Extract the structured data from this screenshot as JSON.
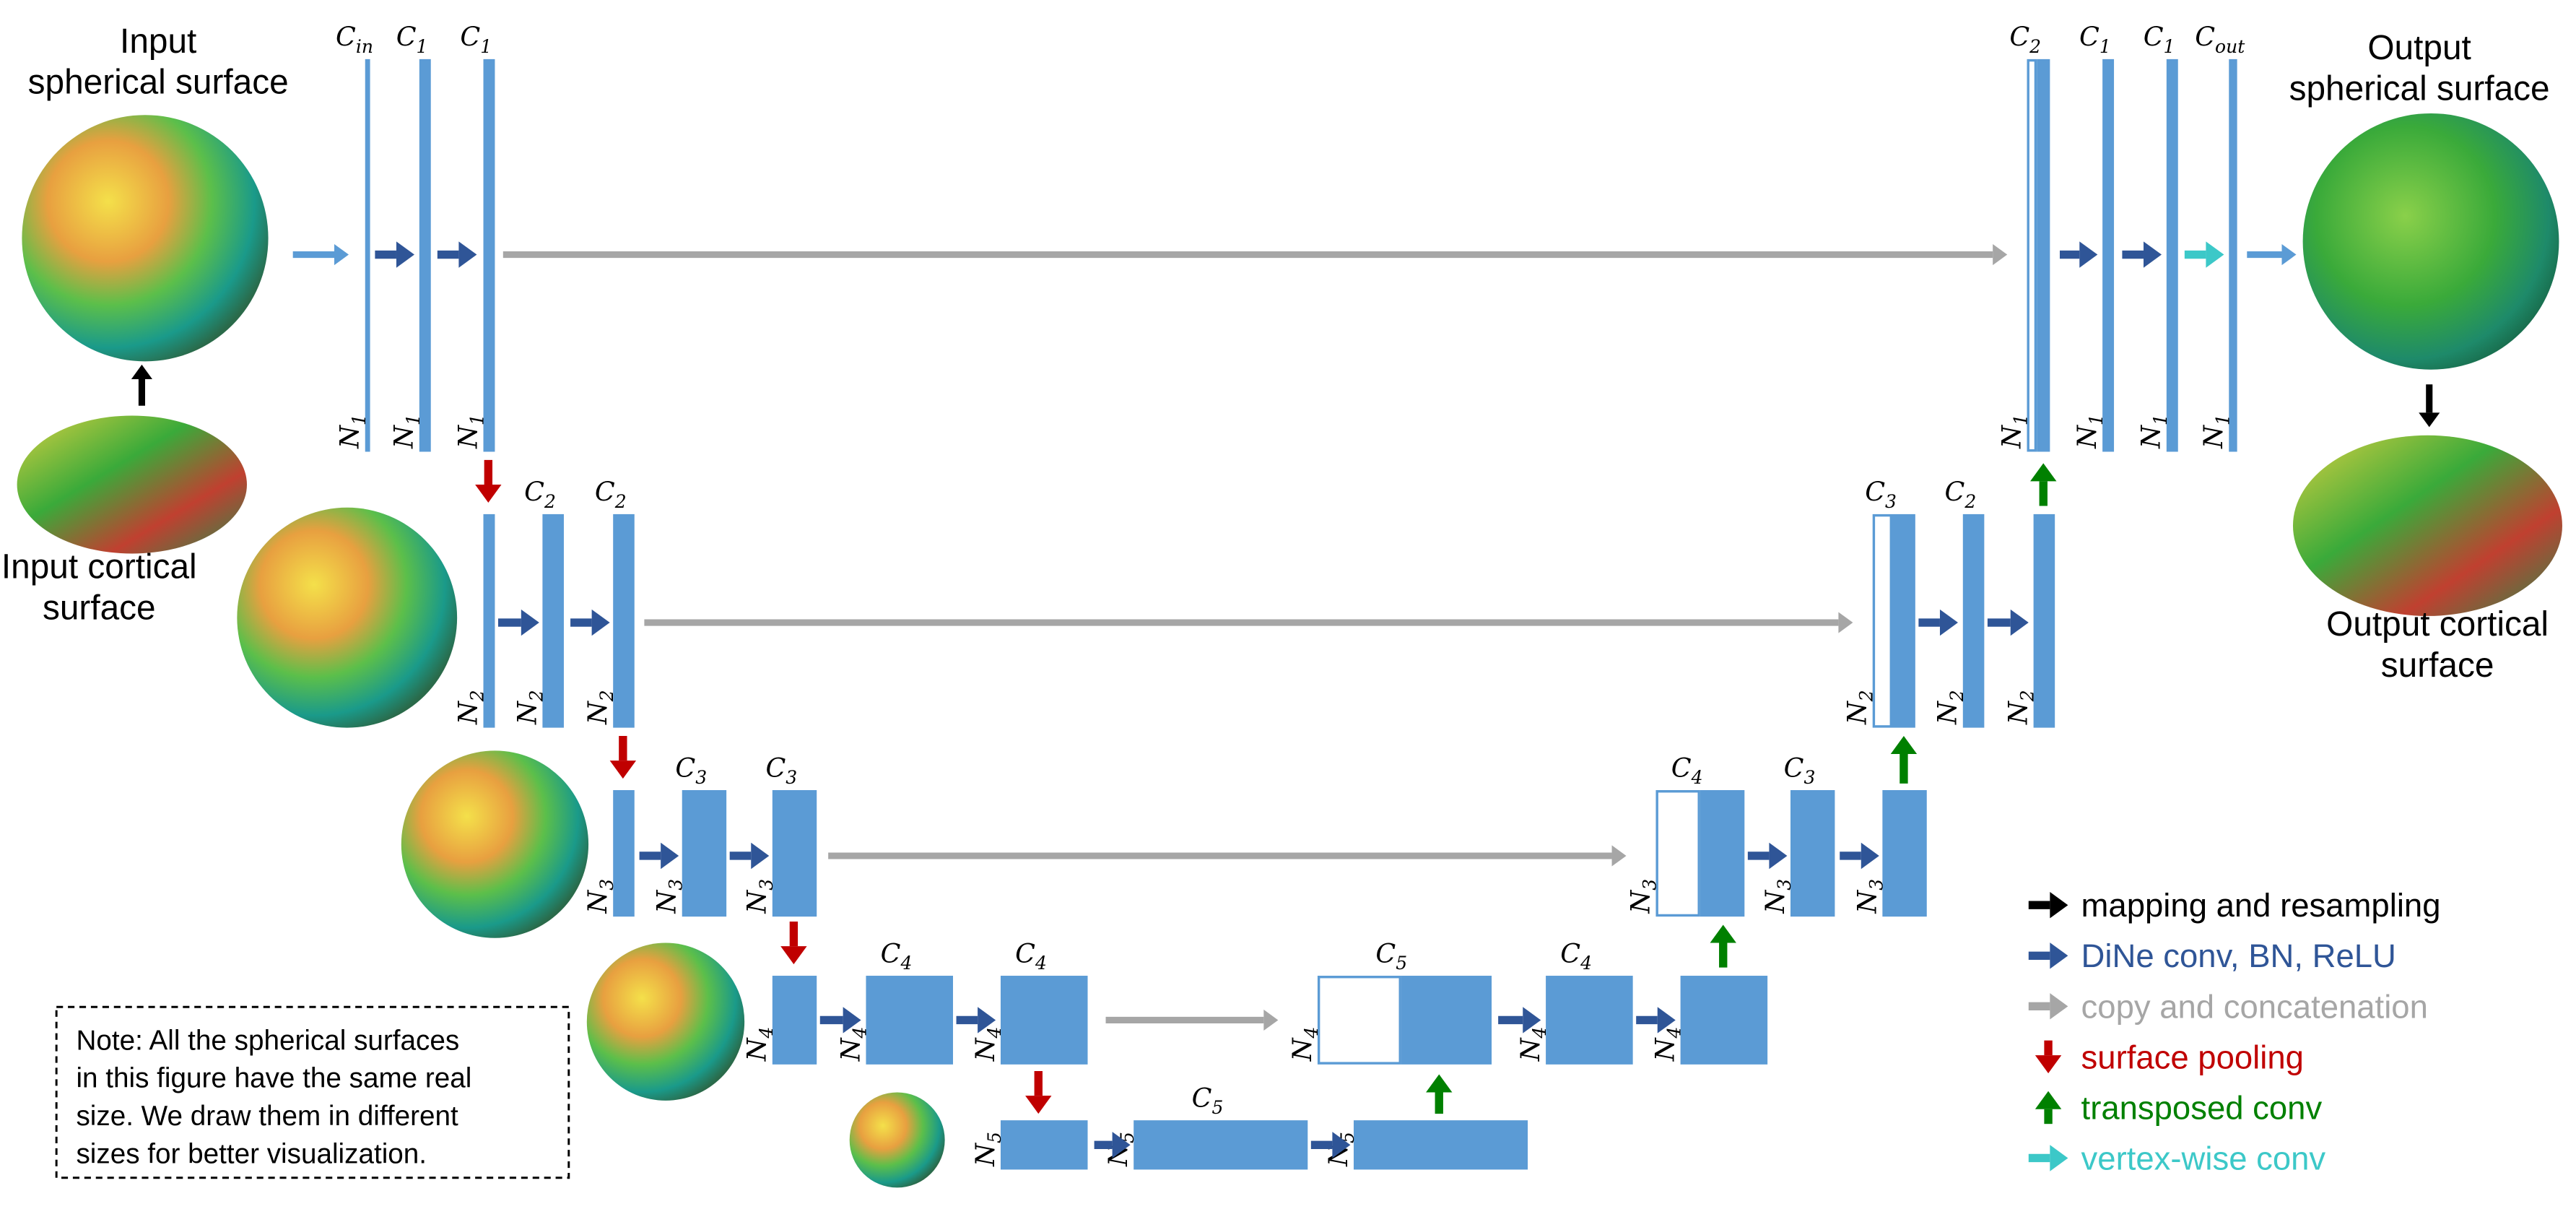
{
  "blocks": [
    {
      "channels": {
        "symbol": "C",
        "sub": "in"
      },
      "vertices": {
        "symbol": "N",
        "sub": "1"
      }
    },
    {
      "channels": {
        "symbol": "C",
        "sub": "1"
      },
      "vertices": {
        "symbol": "N",
        "sub": "1"
      }
    },
    {
      "channels": {
        "symbol": "C",
        "sub": "1"
      },
      "vertices": {
        "symbol": "N",
        "sub": "1"
      }
    },
    {
      "channels": {
        "symbol": "C",
        "sub": "2"
      },
      "vertices": {
        "symbol": "N",
        "sub": "1"
      }
    },
    {
      "channels": {
        "symbol": "C",
        "sub": "1"
      },
      "vertices": {
        "symbol": "N",
        "sub": "1"
      }
    },
    {
      "channels": {
        "symbol": "C",
        "sub": "1"
      },
      "vertices": {
        "symbol": "N",
        "sub": "1"
      }
    },
    {
      "channels": {
        "symbol": "C",
        "sub": "out"
      },
      "vertices": {
        "symbol": "N",
        "sub": "1"
      }
    },
    {
      "vertices": {
        "symbol": "N",
        "sub": "2"
      }
    },
    {
      "channels": {
        "symbol": "C",
        "sub": "2"
      },
      "vertices": {
        "symbol": "N",
        "sub": "2"
      }
    },
    {
      "channels": {
        "symbol": "C",
        "sub": "2"
      },
      "vertices": {
        "symbol": "N",
        "sub": "2"
      }
    },
    {
      "channels": {
        "symbol": "C",
        "sub": "3"
      },
      "vertices": {
        "symbol": "N",
        "sub": "2"
      }
    },
    {
      "channels": {
        "symbol": "C",
        "sub": "2"
      },
      "vertices": {
        "symbol": "N",
        "sub": "2"
      }
    },
    {
      "vertices": {
        "symbol": "N",
        "sub": "2"
      }
    },
    {
      "vertices": {
        "symbol": "N",
        "sub": "3"
      }
    },
    {
      "channels": {
        "symbol": "C",
        "sub": "3"
      },
      "vertices": {
        "symbol": "N",
        "sub": "3"
      }
    },
    {
      "channels": {
        "symbol": "C",
        "sub": "3"
      },
      "vertices": {
        "symbol": "N",
        "sub": "3"
      }
    },
    {
      "channels": {
        "symbol": "C",
        "sub": "4"
      },
      "vertices": {
        "symbol": "N",
        "sub": "3"
      }
    },
    {
      "channels": {
        "symbol": "C",
        "sub": "3"
      },
      "vertices": {
        "symbol": "N",
        "sub": "3"
      }
    },
    {
      "vertices": {
        "symbol": "N",
        "sub": "3"
      }
    },
    {
      "vertices": {
        "symbol": "N",
        "sub": "4"
      }
    },
    {
      "channels": {
        "symbol": "C",
        "sub": "4"
      },
      "vertices": {
        "symbol": "N",
        "sub": "4"
      }
    },
    {
      "channels": {
        "symbol": "C",
        "sub": "4"
      },
      "vertices": {
        "symbol": "N",
        "sub": "4"
      }
    },
    {
      "channels": {
        "symbol": "C",
        "sub": "5"
      },
      "vertices": {
        "symbol": "N",
        "sub": "4"
      }
    },
    {
      "channels": {
        "symbol": "C",
        "sub": "4"
      },
      "vertices": {
        "symbol": "N",
        "sub": "4"
      }
    },
    {
      "vertices": {
        "symbol": "N",
        "sub": "4"
      }
    },
    {
      "vertices": {
        "symbol": "N",
        "sub": "5"
      }
    },
    {
      "channels": {
        "symbol": "C",
        "sub": "5"
      },
      "vertices": {
        "symbol": "N",
        "sub": "5"
      }
    },
    {
      "vertices": {
        "symbol": "N",
        "sub": "5"
      }
    }
  ],
  "captions": {
    "input_sphere": [
      "Input",
      "spherical surface"
    ],
    "input_cortical": [
      "Input cortical",
      "surface"
    ],
    "output_sphere": [
      "Output",
      "spherical surface"
    ],
    "output_cortical": [
      "Output cortical",
      "surface"
    ]
  },
  "legend": [
    {
      "label": "mapping and resampling"
    },
    {
      "label": "DiNe conv, BN, ReLU"
    },
    {
      "label": "copy and concatenation"
    },
    {
      "label": "surface pooling"
    },
    {
      "label": "transposed conv"
    },
    {
      "label": "vertex-wise conv"
    }
  ],
  "note": [
    "Note: All the spherical surfaces",
    "in this figure have the same real",
    "size. We draw them in different",
    "sizes for better visualization."
  ]
}
